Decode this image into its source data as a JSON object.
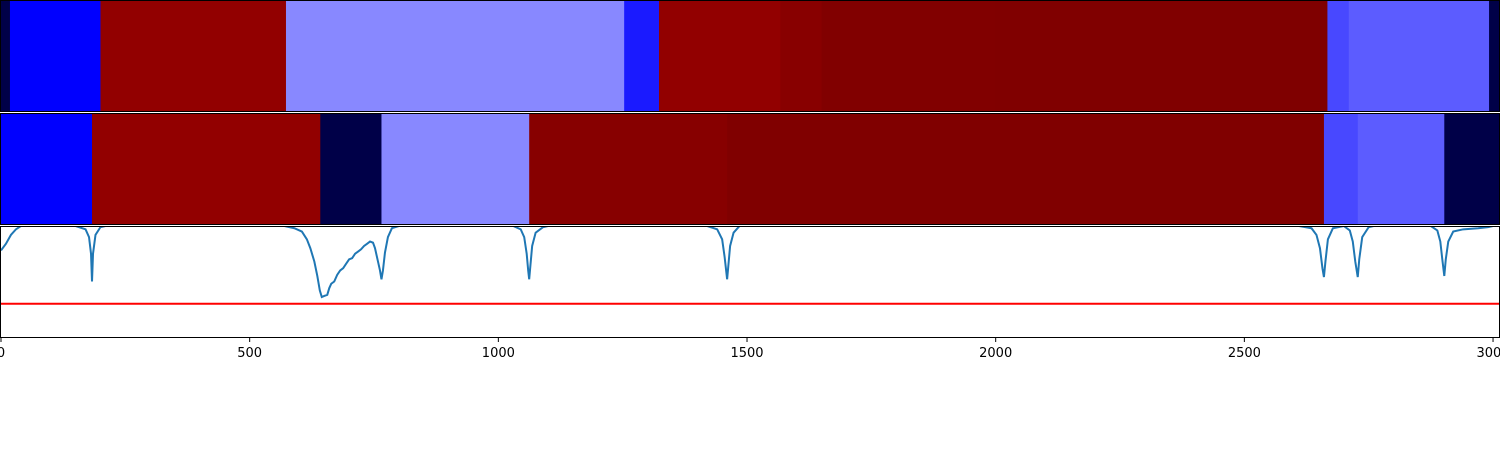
{
  "chart_data": [
    {
      "type": "heatmap",
      "x_range": [
        0,
        3012
      ],
      "segments": [
        {
          "start": 0,
          "end": 18,
          "color": "#000048"
        },
        {
          "start": 18,
          "end": 200,
          "color": "#0000ff"
        },
        {
          "start": 200,
          "end": 573,
          "color": "#920000"
        },
        {
          "start": 573,
          "end": 1253,
          "color": "#8888ff"
        },
        {
          "start": 1253,
          "end": 1323,
          "color": "#1a1aff"
        },
        {
          "start": 1323,
          "end": 1567,
          "color": "#920000"
        },
        {
          "start": 1567,
          "end": 1650,
          "color": "#880000"
        },
        {
          "start": 1650,
          "end": 2000,
          "color": "#810000"
        },
        {
          "start": 2000,
          "end": 2450,
          "color": "#800000"
        },
        {
          "start": 2450,
          "end": 2667,
          "color": "#7f0000"
        },
        {
          "start": 2667,
          "end": 2710,
          "color": "#4848ff"
        },
        {
          "start": 2710,
          "end": 2992,
          "color": "#5c5cff"
        },
        {
          "start": 2992,
          "end": 3012,
          "color": "#000048"
        }
      ]
    },
    {
      "type": "heatmap",
      "x_range": [
        0,
        3012
      ],
      "segments": [
        {
          "start": 0,
          "end": 183,
          "color": "#0000ff"
        },
        {
          "start": 183,
          "end": 642,
          "color": "#920000"
        },
        {
          "start": 642,
          "end": 765,
          "color": "#000048"
        },
        {
          "start": 765,
          "end": 1062,
          "color": "#8888ff"
        },
        {
          "start": 1062,
          "end": 1460,
          "color": "#870000"
        },
        {
          "start": 1460,
          "end": 2660,
          "color": "#800000"
        },
        {
          "start": 2660,
          "end": 2728,
          "color": "#4848ff"
        },
        {
          "start": 2728,
          "end": 2902,
          "color": "#5c5cff"
        },
        {
          "start": 2902,
          "end": 3012,
          "color": "#000048"
        }
      ]
    },
    {
      "type": "line",
      "x_range": [
        0,
        3012
      ],
      "y_range": [
        0,
        1
      ],
      "threshold": 0.3,
      "threshold_color": "#ff0000",
      "line_color": "#1f77b4",
      "x_ticks": [
        0,
        500,
        1000,
        1500,
        2000,
        2500,
        3000
      ],
      "x_tick_labels": [
        "0",
        "500",
        "1000",
        "1500",
        "2000",
        "2500",
        "3000"
      ],
      "points": [
        [
          0,
          0.78
        ],
        [
          10,
          0.84
        ],
        [
          20,
          0.92
        ],
        [
          30,
          0.97
        ],
        [
          40,
          1.0
        ],
        [
          150,
          1.0
        ],
        [
          170,
          0.97
        ],
        [
          177,
          0.9
        ],
        [
          181,
          0.75
        ],
        [
          183,
          0.5
        ],
        [
          185,
          0.75
        ],
        [
          190,
          0.92
        ],
        [
          200,
          0.99
        ],
        [
          210,
          1.0
        ],
        [
          570,
          1.0
        ],
        [
          590,
          0.98
        ],
        [
          605,
          0.95
        ],
        [
          615,
          0.88
        ],
        [
          622,
          0.8
        ],
        [
          630,
          0.68
        ],
        [
          636,
          0.55
        ],
        [
          641,
          0.42
        ],
        [
          645,
          0.36
        ],
        [
          650,
          0.37
        ],
        [
          656,
          0.38
        ],
        [
          660,
          0.44
        ],
        [
          664,
          0.48
        ],
        [
          670,
          0.5
        ],
        [
          676,
          0.56
        ],
        [
          682,
          0.6
        ],
        [
          688,
          0.62
        ],
        [
          694,
          0.66
        ],
        [
          700,
          0.7
        ],
        [
          706,
          0.71
        ],
        [
          712,
          0.75
        ],
        [
          718,
          0.77
        ],
        [
          724,
          0.79
        ],
        [
          730,
          0.82
        ],
        [
          736,
          0.84
        ],
        [
          742,
          0.86
        ],
        [
          748,
          0.85
        ],
        [
          752,
          0.8
        ],
        [
          757,
          0.7
        ],
        [
          762,
          0.6
        ],
        [
          765,
          0.52
        ],
        [
          768,
          0.6
        ],
        [
          772,
          0.76
        ],
        [
          778,
          0.9
        ],
        [
          786,
          0.98
        ],
        [
          800,
          1.0
        ],
        [
          1030,
          1.0
        ],
        [
          1045,
          0.97
        ],
        [
          1052,
          0.9
        ],
        [
          1057,
          0.75
        ],
        [
          1060,
          0.6
        ],
        [
          1062,
          0.52
        ],
        [
          1064,
          0.62
        ],
        [
          1068,
          0.82
        ],
        [
          1075,
          0.94
        ],
        [
          1090,
          0.99
        ],
        [
          1100,
          1.0
        ],
        [
          1420,
          1.0
        ],
        [
          1440,
          0.97
        ],
        [
          1450,
          0.88
        ],
        [
          1455,
          0.72
        ],
        [
          1458,
          0.6
        ],
        [
          1460,
          0.52
        ],
        [
          1462,
          0.62
        ],
        [
          1466,
          0.82
        ],
        [
          1473,
          0.94
        ],
        [
          1485,
          1.0
        ],
        [
          2610,
          1.0
        ],
        [
          2635,
          0.98
        ],
        [
          2645,
          0.92
        ],
        [
          2652,
          0.8
        ],
        [
          2657,
          0.62
        ],
        [
          2660,
          0.54
        ],
        [
          2663,
          0.68
        ],
        [
          2668,
          0.88
        ],
        [
          2678,
          0.98
        ],
        [
          2700,
          1.0
        ],
        [
          2712,
          0.96
        ],
        [
          2718,
          0.86
        ],
        [
          2723,
          0.68
        ],
        [
          2728,
          0.54
        ],
        [
          2731,
          0.7
        ],
        [
          2737,
          0.9
        ],
        [
          2750,
          0.99
        ],
        [
          2760,
          1.0
        ],
        [
          2875,
          1.0
        ],
        [
          2888,
          0.96
        ],
        [
          2894,
          0.86
        ],
        [
          2898,
          0.7
        ],
        [
          2902,
          0.55
        ],
        [
          2905,
          0.7
        ],
        [
          2910,
          0.86
        ],
        [
          2920,
          0.95
        ],
        [
          2940,
          0.97
        ],
        [
          2970,
          0.98
        ],
        [
          2990,
          0.99
        ],
        [
          3000,
          1.0
        ],
        [
          3012,
          1.0
        ]
      ]
    }
  ]
}
